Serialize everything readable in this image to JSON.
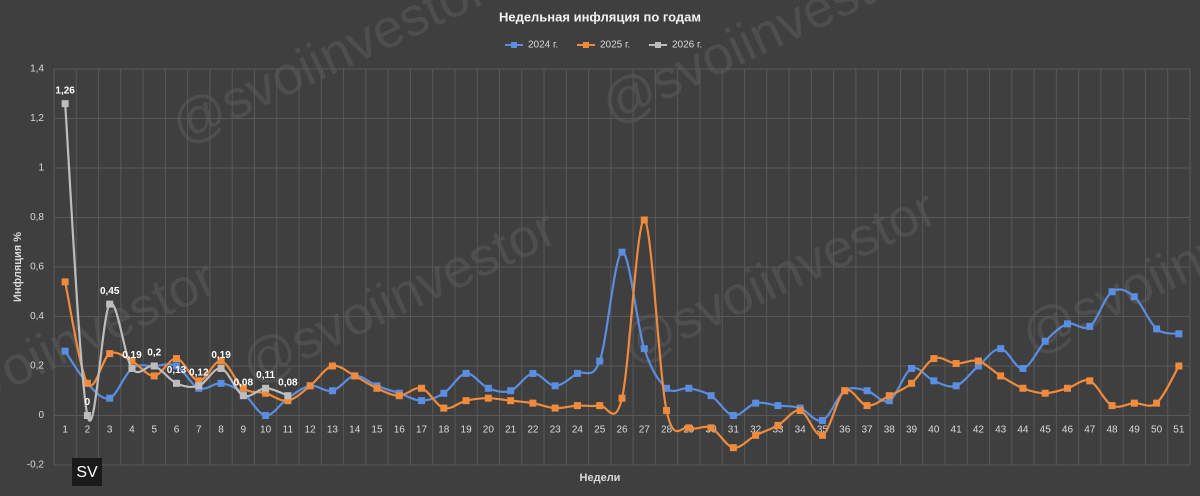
{
  "chart_data": {
    "type": "line",
    "title": "Недельная инфляция по годам",
    "y_axis_label": "Инфляция %",
    "x_axis_label": "Недели",
    "watermark": "@svoiinvestor",
    "logo_text": "SV",
    "legend": "top",
    "grid": true,
    "categories": [
      "1",
      "2",
      "3",
      "4",
      "5",
      "6",
      "7",
      "8",
      "9",
      "10",
      "11",
      "12",
      "13",
      "14",
      "15",
      "16",
      "17",
      "18",
      "19",
      "20",
      "21",
      "22",
      "23",
      "24",
      "25",
      "26",
      "27",
      "28",
      "29",
      "30",
      "31",
      "32",
      "33",
      "34",
      "35",
      "36",
      "37",
      "38",
      "39",
      "40",
      "41",
      "42",
      "43",
      "44",
      "45",
      "46",
      "47",
      "48",
      "49",
      "50",
      "51"
    ],
    "ylim": [
      -0.2,
      1.4
    ],
    "yticks": [
      {
        "value": -0.2,
        "label": "-0,2"
      },
      0,
      {
        "value": 0.2,
        "label": "0,2"
      },
      {
        "value": 0.4,
        "label": "0,4"
      },
      {
        "value": 0.6,
        "label": "0,6"
      },
      {
        "value": 0.8,
        "label": "0,8"
      },
      1,
      {
        "value": 1.2,
        "label": "1,2"
      },
      {
        "value": 1.4,
        "label": "1,4"
      }
    ],
    "series": [
      {
        "name": "2024 г.",
        "color": "#5b8de0",
        "values": [
          0.26,
          0.13,
          0.07,
          0.19,
          0.2,
          0.2,
          0.11,
          0.13,
          0.09,
          0.0,
          0.07,
          0.12,
          0.1,
          0.16,
          0.12,
          0.09,
          0.06,
          0.09,
          0.17,
          0.11,
          0.1,
          0.17,
          0.12,
          0.17,
          0.22,
          0.66,
          0.27,
          0.11,
          0.11,
          0.08,
          0.0,
          0.05,
          0.04,
          0.03,
          -0.02,
          0.1,
          0.1,
          0.06,
          0.19,
          0.14,
          0.12,
          0.2,
          0.27,
          0.19,
          0.3,
          0.37,
          0.36,
          0.5,
          0.48,
          0.35,
          0.33
        ]
      },
      {
        "name": "2025 г.",
        "color": "#f08a3c",
        "values": [
          0.54,
          0.13,
          0.25,
          0.22,
          0.16,
          0.23,
          0.14,
          0.22,
          0.11,
          0.09,
          0.06,
          0.12,
          0.2,
          0.16,
          0.11,
          0.08,
          0.11,
          0.03,
          0.06,
          0.07,
          0.06,
          0.05,
          0.03,
          0.04,
          0.04,
          0.07,
          0.79,
          0.02,
          -0.05,
          -0.05,
          -0.13,
          -0.08,
          -0.04,
          0.02,
          -0.08,
          0.1,
          0.04,
          0.08,
          0.13,
          0.23,
          0.21,
          0.22,
          0.16,
          0.11,
          0.09,
          0.11,
          0.14,
          0.04,
          0.05,
          0.05,
          0.2
        ]
      },
      {
        "name": "2026 г.",
        "color": "#bdbdbd",
        "values": [
          1.26,
          0,
          0.45,
          0.19,
          0.2,
          0.13,
          0.12,
          0.19,
          0.08,
          0.11,
          0.08,
          null,
          null,
          null,
          null,
          null,
          null,
          null,
          null,
          null,
          null,
          null,
          null,
          null,
          null,
          null,
          null,
          null,
          null,
          null,
          null,
          null,
          null,
          null,
          null,
          null,
          null,
          null,
          null,
          null,
          null,
          null,
          null,
          null,
          null,
          null,
          null,
          null,
          null,
          null,
          null
        ],
        "value_labels": [
          "1,26",
          "0",
          "0,45",
          "0,19",
          "0,2",
          "0,13",
          "0,12",
          "0,19",
          "0,08",
          "0,11",
          "0,08"
        ]
      }
    ]
  }
}
